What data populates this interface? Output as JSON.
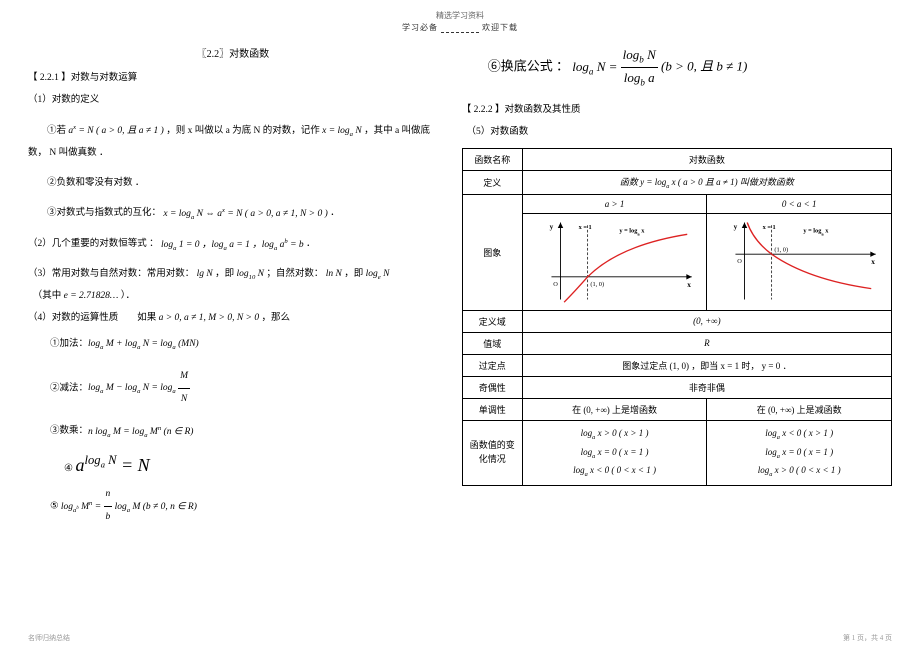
{
  "header": {
    "top": "精选学习资料",
    "sub_left": "学习必备",
    "sub_right": "欢迎下载"
  },
  "title": "〖2.2〗对数函数",
  "left": {
    "h1": "【 2.2.1 】对数与对数运算",
    "p1": "（1）对数的定义",
    "p2_a": "①若 ",
    "p2_math": "a<sup>x</sup> = N ( a > 0, 且 a ≠ 1 )",
    "p2_b": " ，则 x 叫做以 a 为底 N 的对数，记作 ",
    "p2_math2": "x = log<sub>a</sub> N",
    "p2_c": " ，其中 a 叫做底数， N 叫做真数 ．",
    "p3": "②负数和零没有对数 ．",
    "p4_a": "③对数式与指数式的互化： ",
    "p4_math": "x = log<sub>a</sub> N ⇔ a<sup>x</sup> = N ( a > 0, a ≠ 1, N > 0 )",
    "p4_b": " ．",
    "p5_a": "（2）几个重要的对数恒等式 ： ",
    "p5_math": "log<sub>a</sub> 1 = 0 ，log<sub>a</sub> a = 1 ，log<sub>a</sub> a<sup>b</sup> = b",
    "p5_b": " ．",
    "p6_a": "（3）常用对数与自然对数：常用对数： ",
    "p6_math1": "lg N",
    "p6_b": " ，即 ",
    "p6_math2": "log<sub>10</sub> N",
    "p6_c": " ；自然对数： ",
    "p6_math3": "ln N",
    "p6_d": " ，即 ",
    "p6_math4": "log<sub>e</sub> N",
    "p7_a": "（其中 ",
    "p7_math": "e = 2.71828…",
    "p7_b": " ）．",
    "p8_a": "（4）对数的运算性质　　如果 ",
    "p8_math": "a > 0, a ≠ 1, M > 0, N > 0",
    "p8_b": " ，那么",
    "item1_a": "①加法：",
    "item1_math": "log<sub>a</sub> M + log<sub>a</sub> N = log<sub>a</sub> (MN)",
    "item2_a": "②减法：",
    "item2_math": "log<sub>a</sub> M − log<sub>a</sub> N = log<sub>a</sub> ",
    "item2_frac_num": "M",
    "item2_frac_den": "N",
    "item3_a": "③数乘：",
    "item3_math": "n log<sub>a</sub> M = log<sub>a</sub> M<sup>n</sup> (n ∈ R)",
    "item4_a": "④ ",
    "item4_math": "a<sup>log<sub>a</sub> N</sup> = N",
    "item5_a": "⑤ ",
    "item5_math_pre": "log<sub>a<sup>b</sup></sub> M<sup>n</sup> = ",
    "item5_frac_num": "n",
    "item5_frac_den": "b",
    "item5_math_post": " log<sub>a</sub> M (b ≠ 0, n ∈ R)"
  },
  "right": {
    "cb_a": "⑥换底公式 ：",
    "cb_math_pre": "log<sub>a</sub> N = ",
    "cb_frac_num": "log<sub>b</sub> N",
    "cb_frac_den": "log<sub>b</sub> a",
    "cb_math_post": " (b > 0, 且 b ≠ 1)",
    "h2": "【 2.2.2 】对数函数及其性质",
    "p1": "（5）对数函数",
    "table": {
      "row0_c0": "函数名称",
      "row0_c1": "对数函数",
      "row1_c0": "定义",
      "row1_c1": "函数 y = log<sub>a</sub> x ( a > 0 且 a ≠ 1) 叫做对数函数",
      "row2_c0": "a > 1",
      "row2_c1": "0 < a < 1",
      "row3_label": "图象",
      "row4_c0": "定义域",
      "row4_c1": "(0, +∞)",
      "row5_c0": "值域",
      "row5_c1": "R",
      "row6_c0": "过定点",
      "row6_c1": "图象过定点  (1, 0) ，即当 x = 1 时， y = 0 ．",
      "row7_c0": "奇偶性",
      "row7_c1": "非奇非偶",
      "row8_c0": "单调性",
      "row8_c1": "在 (0, +∞) 上是增函数",
      "row8_c2": "在 (0, +∞) 上是减函数",
      "row9_c0": "函数值的变化情况",
      "row9_c1_l1": "log<sub>a</sub> x > 0  ( x > 1 )",
      "row9_c1_l2": "log<sub>a</sub> x = 0  ( x = 1 )",
      "row9_c1_l3": "log<sub>a</sub> x < 0  ( 0 < x < 1 )",
      "row9_c2_l1": "log<sub>a</sub> x < 0  ( x > 1 )",
      "row9_c2_l2": "log<sub>a</sub> x = 0  ( x = 1 )",
      "row9_c2_l3": "log<sub>a</sub> x > 0  ( 0 < x < 1 )"
    },
    "graph": {
      "axis_color": "#000000",
      "curve_color": "#d22",
      "dashed_color": "#000000",
      "label_y": "y",
      "label_x": "x",
      "label_curve": "y = log<sub>a</sub> x",
      "label_x1": "x = 1",
      "label_point": "(1, 0)",
      "label_o": "O"
    }
  },
  "footer": {
    "left": "名师归纳总结",
    "right": "第 1 页，共 4 页"
  }
}
